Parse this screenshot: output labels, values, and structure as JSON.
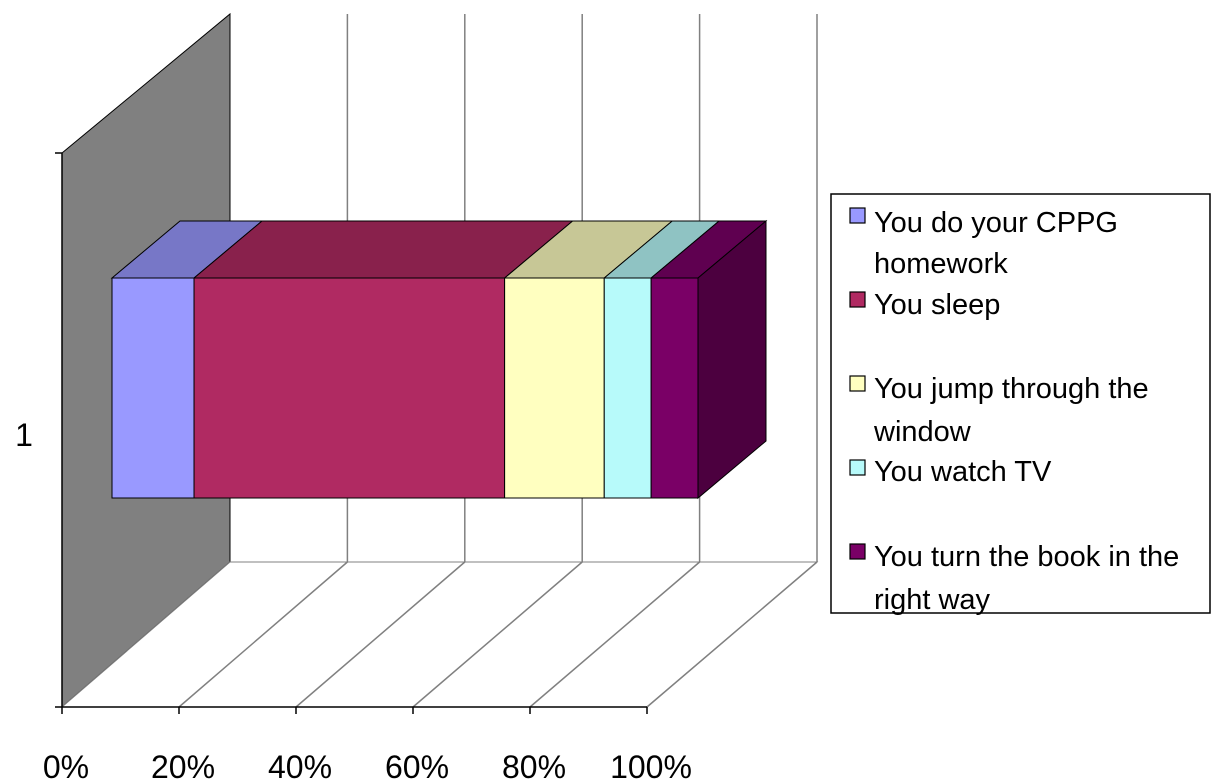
{
  "chart_data": {
    "type": "bar",
    "stacked": "100%",
    "three_d": true,
    "orientation": "horizontal",
    "categories": [
      "1"
    ],
    "series": [
      {
        "name": "You do your CPPG homework",
        "values": [
          14
        ],
        "color": "#9999ff"
      },
      {
        "name": "You sleep",
        "values": [
          53
        ],
        "color": "#b02a62"
      },
      {
        "name": "You jump through the window",
        "values": [
          17
        ],
        "color": "#ffffc0"
      },
      {
        "name": "You watch TV",
        "values": [
          8
        ],
        "color": "#b7fafa"
      },
      {
        "name": "You turn the book in the right way",
        "values": [
          8
        ],
        "color": "#7a0066"
      }
    ],
    "x_ticks": [
      "0%",
      "20%",
      "40%",
      "60%",
      "80%",
      "100%"
    ],
    "xlim": [
      0,
      100
    ],
    "legend": "right",
    "grid": true,
    "wall_color": "#808080"
  }
}
